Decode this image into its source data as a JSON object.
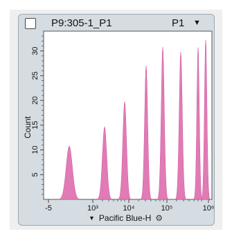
{
  "plot": {
    "sample_name": "P9:305-1_P1",
    "gate_name": "P1",
    "gate_caret": "▼",
    "xaxis_caret": "▼",
    "gear_glyph": "⚙"
  },
  "chart_data": {
    "type": "histogram",
    "xlabel": "Pacific Blue-H",
    "ylabel": "Count",
    "x_scale": "biexponential",
    "x_tick_labels": [
      "-5",
      "10³",
      "10⁴",
      "10⁵",
      "10⁶"
    ],
    "y_ticks": [
      5,
      10,
      15,
      20,
      25,
      30
    ],
    "ylim": [
      0,
      34
    ],
    "fill_color": "#e07bb6",
    "peaks": [
      {
        "center_label": "~-2",
        "count": 10.8
      },
      {
        "center_label": "~2×10³",
        "count": 14.7
      },
      {
        "center_label": "~7×10³",
        "count": 19.8
      },
      {
        "center_label": "~2.5×10⁴",
        "count": 27.0
      },
      {
        "center_label": "~7×10⁴",
        "count": 30.8
      },
      {
        "center_label": "~1.8×10⁵",
        "count": 29.8
      },
      {
        "center_label": "~4.5×10⁵",
        "count": 30.7
      },
      {
        "center_label": "~8×10⁵",
        "count": 32.2
      }
    ]
  }
}
